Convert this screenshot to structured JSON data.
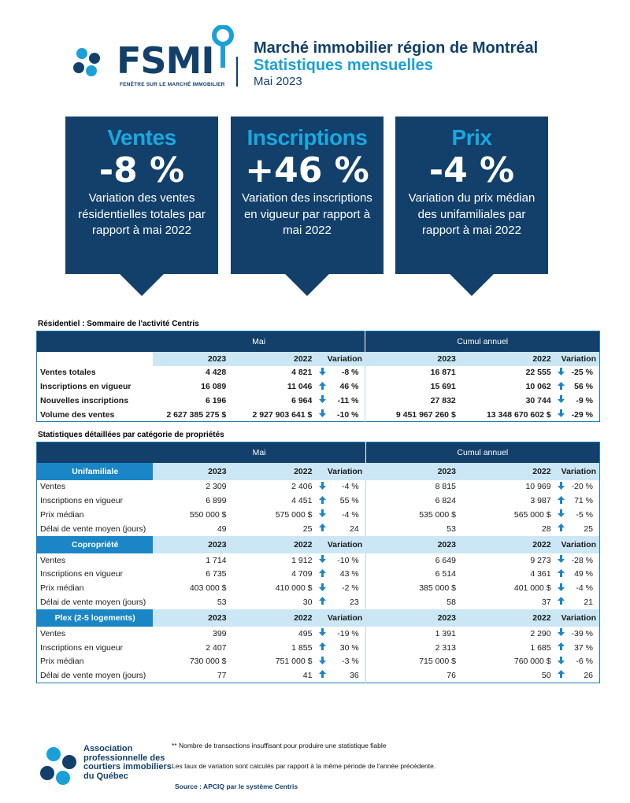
{
  "header": {
    "logo_text": "FSMI",
    "logo_tagline": "FENÊTRE SUR LE MARCHÉ IMMOBILIER",
    "title": "Marché immobilier région de Montréal",
    "subtitle": "Statistiques mensuelles",
    "date": "Mai 2023"
  },
  "cards": [
    {
      "title": "Ventes",
      "value": "-8 %",
      "description": "Variation des ventes résidentielles totales par rapport à mai 2022"
    },
    {
      "title": "Inscriptions",
      "value": "+46 %",
      "description": "Variation des inscriptions en vigueur par rapport à mai 2022"
    },
    {
      "title": "Prix",
      "value": "-4 %",
      "description": "Variation du prix médian des unifamiliales par rapport à mai 2022"
    }
  ],
  "summary": {
    "title": "Résidentiel : Sommaire de l'activité Centris",
    "group_month": "Mai",
    "group_ytd": "Cumul annuel",
    "year_current": "2023",
    "year_previous": "2022",
    "variation_label": "Variation",
    "rows": [
      {
        "label": "Ventes totales",
        "m23": "4 428",
        "m22": "4 821",
        "m_dir": "down",
        "m_var": "-8 %",
        "y23": "16 871",
        "y22": "22 555",
        "y_dir": "down",
        "y_var": "-25 %"
      },
      {
        "label": "Inscriptions en vigueur",
        "m23": "16 089",
        "m22": "11 046",
        "m_dir": "up",
        "m_var": "46 %",
        "y23": "15 691",
        "y22": "10 062",
        "y_dir": "up",
        "y_var": "56 %"
      },
      {
        "label": "Nouvelles inscriptions",
        "m23": "6 196",
        "m22": "6 964",
        "m_dir": "down",
        "m_var": "-11 %",
        "y23": "27 832",
        "y22": "30 744",
        "y_dir": "down",
        "y_var": "-9 %"
      },
      {
        "label": "Volume des ventes",
        "m23": "2 627 385 275  $",
        "m22": "2 927 903 641  $",
        "m_dir": "down",
        "m_var": "-10 %",
        "y23": "9 451 967 260  $",
        "y22": "13 348 670 602  $",
        "y_dir": "down",
        "y_var": "-29 %"
      }
    ]
  },
  "detail": {
    "title": "Statistiques détaillées par catégorie de propriétés",
    "group_month": "Mai",
    "group_ytd": "Cumul annuel",
    "year_current": "2023",
    "year_previous": "2022",
    "variation_label": "Variation",
    "categories": [
      {
        "name": "Unifamiliale",
        "rows": [
          {
            "label": "Ventes",
            "m23": "2 309",
            "m22": "2 406",
            "m_dir": "down",
            "m_var": "-4 %",
            "y23": "8 815",
            "y22": "10 969",
            "y_dir": "down",
            "y_var": "-20 %"
          },
          {
            "label": "Inscriptions en vigueur",
            "m23": "6 899",
            "m22": "4 451",
            "m_dir": "up",
            "m_var": "55 %",
            "y23": "6 824",
            "y22": "3 987",
            "y_dir": "up",
            "y_var": "71 %"
          },
          {
            "label": "Prix médian",
            "m23": "550 000 $",
            "m22": "575 000 $",
            "m_dir": "down",
            "m_var": "-4 %",
            "y23": "535 000 $",
            "y22": "565 000 $",
            "y_dir": "down",
            "y_var": "-5 %"
          },
          {
            "label": "Délai de vente moyen (jours)",
            "m23": "49",
            "m22": "25",
            "m_dir": "up",
            "m_var": "24",
            "y23": "53",
            "y22": "28",
            "y_dir": "up",
            "y_var": "25"
          }
        ]
      },
      {
        "name": "Copropriété",
        "rows": [
          {
            "label": "Ventes",
            "m23": "1 714",
            "m22": "1 912",
            "m_dir": "down",
            "m_var": "-10 %",
            "y23": "6 649",
            "y22": "9 273",
            "y_dir": "down",
            "y_var": "-28 %"
          },
          {
            "label": "Inscriptions en vigueur",
            "m23": "6 735",
            "m22": "4 709",
            "m_dir": "up",
            "m_var": "43 %",
            "y23": "6 514",
            "y22": "4 361",
            "y_dir": "up",
            "y_var": "49 %"
          },
          {
            "label": "Prix médian",
            "m23": "403 000 $",
            "m22": "410 000 $",
            "m_dir": "down",
            "m_var": "-2 %",
            "y23": "385 000 $",
            "y22": "401 000 $",
            "y_dir": "down",
            "y_var": "-4 %"
          },
          {
            "label": "Délai de vente moyen (jours)",
            "m23": "53",
            "m22": "30",
            "m_dir": "up",
            "m_var": "23",
            "y23": "58",
            "y22": "37",
            "y_dir": "up",
            "y_var": "21"
          }
        ]
      },
      {
        "name": "Plex (2-5 logements)",
        "rows": [
          {
            "label": "Ventes",
            "m23": "399",
            "m22": "495",
            "m_dir": "down",
            "m_var": "-19 %",
            "y23": "1 391",
            "y22": "2 290",
            "y_dir": "down",
            "y_var": "-39 %"
          },
          {
            "label": "Inscriptions en vigueur",
            "m23": "2 407",
            "m22": "1 855",
            "m_dir": "up",
            "m_var": "30 %",
            "y23": "2 313",
            "y22": "1 685",
            "y_dir": "up",
            "y_var": "37 %"
          },
          {
            "label": "Prix médian",
            "m23": "730 000 $",
            "m22": "751 000 $",
            "m_dir": "down",
            "m_var": "-3 %",
            "y23": "715 000 $",
            "y22": "760 000 $",
            "y_dir": "down",
            "y_var": "-6 %"
          },
          {
            "label": "Délai de vente moyen (jours)",
            "m23": "77",
            "m22": "41",
            "m_dir": "up",
            "m_var": "36",
            "y23": "76",
            "y22": "50",
            "y_dir": "up",
            "y_var": "26"
          }
        ]
      }
    ]
  },
  "footer": {
    "org_name": "Association professionnelle des courtiers immobiliers du Québec",
    "note_insufficient": "** Nombre de transactions insuffisant pour produire une statistique fiable",
    "note_variation": "Les taux de variation sont calculés par rapport à la même période de l'année précédente.",
    "source": "Source : APCIQ par le système Centris"
  },
  "icons": {
    "up": "arrow-up-icon",
    "down": "arrow-down-icon"
  },
  "colors": {
    "navy": "#12406a",
    "accent_blue": "#1aa0d8",
    "category_blue": "#1a86c6",
    "light_blue": "#cbe7f6"
  }
}
